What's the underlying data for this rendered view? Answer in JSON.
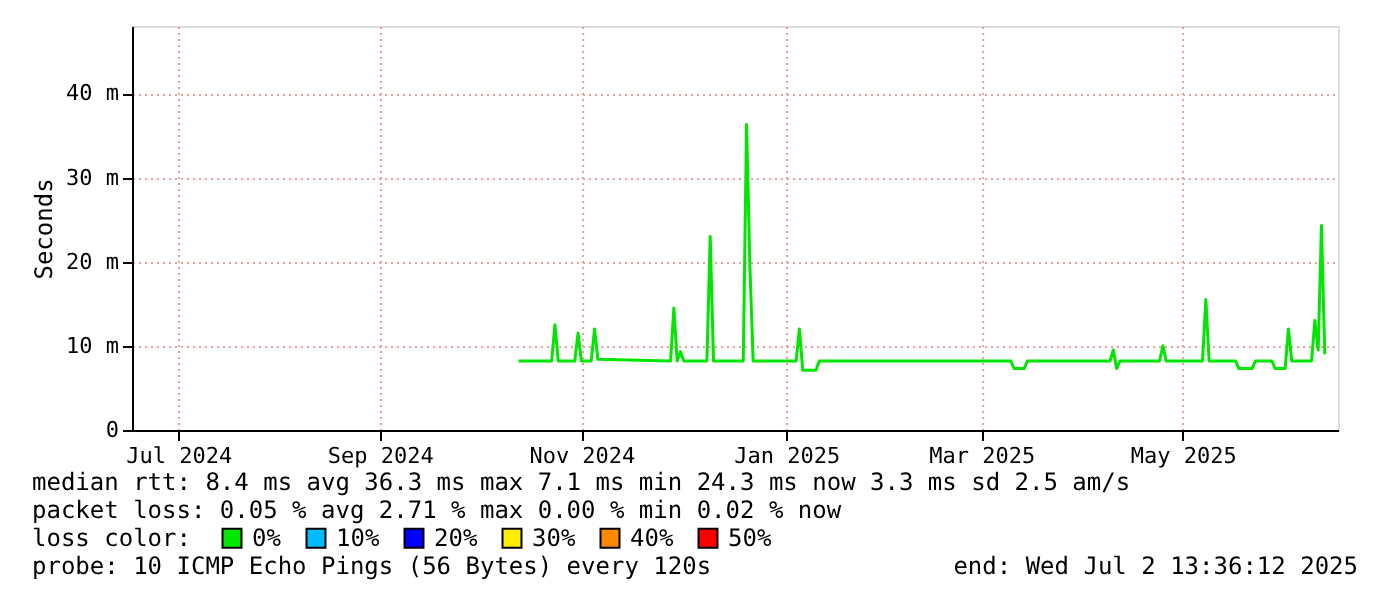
{
  "chart_data": {
    "type": "line",
    "ylabel": "Seconds",
    "xlim": [
      "2024-07-02",
      "2025-07-02"
    ],
    "xticks": [
      {
        "value": "2024-07-16",
        "label": "Jul 2024"
      },
      {
        "value": "2024-09-15",
        "label": "Sep 2024"
      },
      {
        "value": "2024-11-15",
        "label": "Nov 2024"
      },
      {
        "value": "2025-01-16",
        "label": "Jan 2025"
      },
      {
        "value": "2025-03-16",
        "label": "Mar 2025"
      },
      {
        "value": "2025-05-16",
        "label": "May 2025"
      }
    ],
    "ylim": [
      0,
      48
    ],
    "yticks": [
      0,
      {
        "value": 10,
        "label": "10 m"
      },
      {
        "value": 20,
        "label": "20 m"
      },
      {
        "value": 30,
        "label": "30 m"
      },
      {
        "value": 40,
        "label": "40 m"
      }
    ],
    "grid": true,
    "legend": "bottom",
    "legend_title": "loss color:",
    "line_style": "solid",
    "marker": "none",
    "series": [
      {
        "name": "0%",
        "color": "#00e600",
        "x": [
          "2024-10-27",
          "2024-11-06",
          "2024-11-07",
          "2024-11-08",
          "2024-11-13",
          "2024-11-14",
          "2024-11-15",
          "2024-11-18",
          "2024-11-19",
          "2024-11-20",
          "2024-12-12",
          "2024-12-13",
          "2024-12-14",
          "2024-12-15",
          "2024-12-16",
          "2024-12-23",
          "2024-12-24",
          "2024-12-25",
          "2025-01-03",
          "2025-01-04",
          "2025-01-05",
          "2025-01-06",
          "2025-01-19",
          "2025-01-20",
          "2025-01-21",
          "2025-01-25",
          "2025-01-26",
          "2025-03-25",
          "2025-03-26",
          "2025-03-29",
          "2025-03-30",
          "2025-04-24",
          "2025-04-25",
          "2025-04-26",
          "2025-04-27",
          "2025-05-09",
          "2025-05-10",
          "2025-05-11",
          "2025-05-22",
          "2025-05-23",
          "2025-05-24",
          "2025-06-01",
          "2025-06-02",
          "2025-06-06",
          "2025-06-07",
          "2025-06-12",
          "2025-06-13",
          "2025-06-16",
          "2025-06-17",
          "2025-06-18",
          "2025-06-24",
          "2025-06-25",
          "2025-06-26",
          "2025-06-27",
          "2025-06-28"
        ],
        "values": [
          8.2,
          8.2,
          12.5,
          8.2,
          8.2,
          11.5,
          8.2,
          8.2,
          12,
          8.4,
          8.2,
          14.5,
          8.2,
          9.3,
          8.2,
          8.2,
          23,
          8.2,
          8.2,
          36.3,
          19.5,
          8.2,
          8.2,
          12,
          7.1,
          7.1,
          8.2,
          8.2,
          7.3,
          7.3,
          8.2,
          8.2,
          9.5,
          7.3,
          8.2,
          8.2,
          10,
          8.2,
          8.2,
          15.5,
          8.2,
          8.2,
          7.3,
          7.3,
          8.2,
          8.2,
          7.3,
          7.3,
          12,
          8.2,
          8.2,
          13,
          9.5,
          24.3,
          9
        ]
      },
      {
        "name": "10%",
        "color": "#00bbff"
      },
      {
        "name": "20%",
        "color": "#0000ff"
      },
      {
        "name": "30%",
        "color": "#ffee00"
      },
      {
        "name": "40%",
        "color": "#ff8800"
      },
      {
        "name": "50%",
        "color": "#ff0000"
      }
    ],
    "annotations": [
      "median rtt:  8.4 ms avg  36.3 ms max  7.1 ms min  24.3 ms now  3.3 ms sd  2.5   am/s",
      "packet loss: 0.05 % avg  2.71 % max  0.00 % min  0.02 % now",
      "probe:       10 ICMP Echo Pings (56 Bytes) every 120s",
      "end: Wed Jul  2 13:36:12 2025"
    ]
  }
}
